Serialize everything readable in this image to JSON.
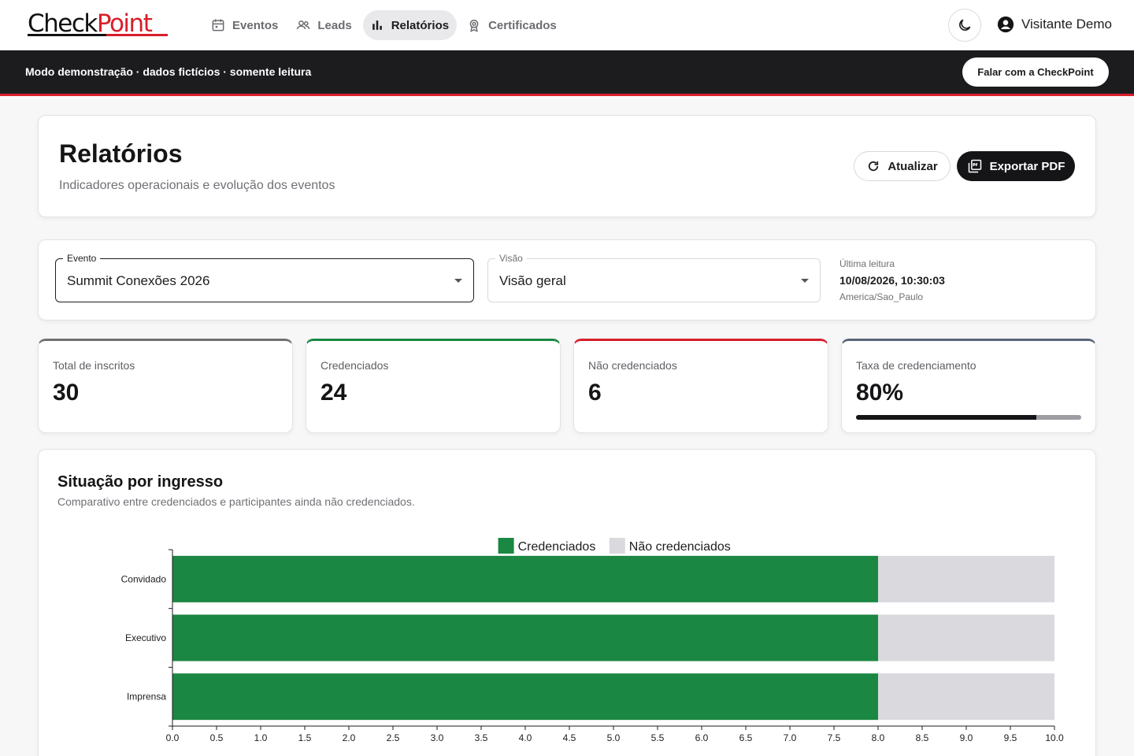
{
  "brand": {
    "part1": "Check",
    "part2": "Point"
  },
  "nav": [
    {
      "label": "Eventos",
      "icon": "calendar-icon",
      "active": false
    },
    {
      "label": "Leads",
      "icon": "users-icon",
      "active": false
    },
    {
      "label": "Relatórios",
      "icon": "bar-chart-icon",
      "active": true
    },
    {
      "label": "Certificados",
      "icon": "award-icon",
      "active": false
    }
  ],
  "user": {
    "name": "Visitante Demo"
  },
  "banner": {
    "text": "Modo demonstração · dados fictícios · somente leitura",
    "cta": "Falar com a CheckPoint"
  },
  "page": {
    "title": "Relatórios",
    "subtitle": "Indicadores operacionais e evolução dos eventos",
    "refresh_label": "Atualizar",
    "export_label": "Exportar PDF"
  },
  "filters": {
    "event_label": "Evento",
    "event_value": "Summit Conexões 2026",
    "view_label": "Visão",
    "view_value": "Visão geral",
    "last_read_label": "Última leitura",
    "last_read_value": "10/08/2026, 10:30:03",
    "timezone": "America/Sao_Paulo"
  },
  "kpis": [
    {
      "label": "Total de inscritos",
      "value": "30",
      "accent": "#707070"
    },
    {
      "label": "Credenciados",
      "value": "24",
      "accent": "#1a8742"
    },
    {
      "label": "Não credenciados",
      "value": "6",
      "accent": "#d81e2a"
    },
    {
      "label": "Taxa de credenciamento",
      "value": "80%",
      "accent": "#5a6478",
      "progress": 0.8
    }
  ],
  "chart": {
    "title": "Situação por ingresso",
    "subtitle": "Comparativo entre credenciados e participantes ainda não credenciados."
  },
  "chart_data": {
    "type": "bar",
    "orientation": "horizontal",
    "stacked": true,
    "categories": [
      "Convidado",
      "Executivo",
      "Imprensa"
    ],
    "series": [
      {
        "name": "Credenciados",
        "values": [
          8,
          8,
          8
        ],
        "color": "#1a8742"
      },
      {
        "name": "Não credenciados",
        "values": [
          2,
          2,
          2
        ],
        "color": "#d9d9de"
      }
    ],
    "xlim": [
      0,
      10
    ],
    "x_ticks": [
      "0.0",
      "0.5",
      "1.0",
      "1.5",
      "2.0",
      "2.5",
      "3.0",
      "3.5",
      "4.0",
      "4.5",
      "5.0",
      "5.5",
      "6.0",
      "6.5",
      "7.0",
      "7.5",
      "8.0",
      "8.5",
      "9.0",
      "9.5",
      "10.0"
    ],
    "legend": "top-center",
    "grid": false
  }
}
